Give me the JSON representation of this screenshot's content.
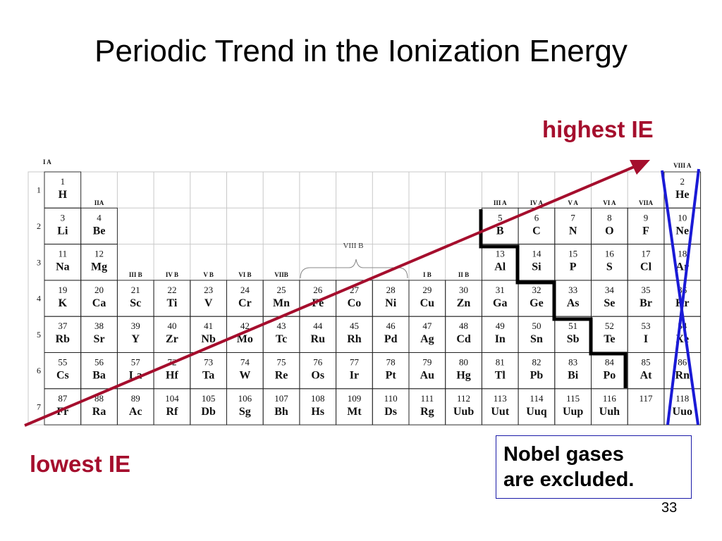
{
  "slide": {
    "title": "Periodic Trend in the Ionization Energy",
    "highest_label": "highest IE",
    "lowest_label": "lowest IE",
    "note": "Nobel gases are excluded.",
    "note_line1": "Nobel gases",
    "note_line2": "are excluded.",
    "page_number": "33"
  },
  "colors": {
    "arrow": "#a50e2d",
    "noble_cross": "#1a1ad6",
    "staircase": "#000000"
  },
  "table": {
    "group_labels": {
      "ia": "I A",
      "iia": "IIA",
      "iiib": "III B",
      "ivb": "IV B",
      "vb": "V B",
      "vib": "VI B",
      "viib": "VIIB",
      "viiib": "VIII B",
      "ib": "I B",
      "iib": "II B",
      "iiia": "III A",
      "iva": "IV A",
      "va": "V A",
      "via": "VI A",
      "viia": "VIIA",
      "viiia": "VIII A"
    },
    "periods": [
      "1",
      "2",
      "3",
      "4",
      "5",
      "6",
      "7"
    ],
    "elements": [
      {
        "n": "1",
        "s": "H",
        "r": 1,
        "c": 1
      },
      {
        "n": "2",
        "s": "He",
        "r": 1,
        "c": 18
      },
      {
        "n": "3",
        "s": "Li",
        "r": 2,
        "c": 1
      },
      {
        "n": "4",
        "s": "Be",
        "r": 2,
        "c": 2
      },
      {
        "n": "5",
        "s": "B",
        "r": 2,
        "c": 13
      },
      {
        "n": "6",
        "s": "C",
        "r": 2,
        "c": 14
      },
      {
        "n": "7",
        "s": "N",
        "r": 2,
        "c": 15
      },
      {
        "n": "8",
        "s": "O",
        "r": 2,
        "c": 16
      },
      {
        "n": "9",
        "s": "F",
        "r": 2,
        "c": 17
      },
      {
        "n": "10",
        "s": "Ne",
        "r": 2,
        "c": 18
      },
      {
        "n": "11",
        "s": "Na",
        "r": 3,
        "c": 1
      },
      {
        "n": "12",
        "s": "Mg",
        "r": 3,
        "c": 2
      },
      {
        "n": "13",
        "s": "Al",
        "r": 3,
        "c": 13
      },
      {
        "n": "14",
        "s": "Si",
        "r": 3,
        "c": 14
      },
      {
        "n": "15",
        "s": "P",
        "r": 3,
        "c": 15
      },
      {
        "n": "16",
        "s": "S",
        "r": 3,
        "c": 16
      },
      {
        "n": "17",
        "s": "Cl",
        "r": 3,
        "c": 17
      },
      {
        "n": "18",
        "s": "Ar",
        "r": 3,
        "c": 18
      },
      {
        "n": "19",
        "s": "K",
        "r": 4,
        "c": 1
      },
      {
        "n": "20",
        "s": "Ca",
        "r": 4,
        "c": 2
      },
      {
        "n": "21",
        "s": "Sc",
        "r": 4,
        "c": 3
      },
      {
        "n": "22",
        "s": "Ti",
        "r": 4,
        "c": 4
      },
      {
        "n": "23",
        "s": "V",
        "r": 4,
        "c": 5
      },
      {
        "n": "24",
        "s": "Cr",
        "r": 4,
        "c": 6
      },
      {
        "n": "25",
        "s": "Mn",
        "r": 4,
        "c": 7
      },
      {
        "n": "26",
        "s": "Fe",
        "r": 4,
        "c": 8
      },
      {
        "n": "27",
        "s": "Co",
        "r": 4,
        "c": 9
      },
      {
        "n": "28",
        "s": "Ni",
        "r": 4,
        "c": 10
      },
      {
        "n": "29",
        "s": "Cu",
        "r": 4,
        "c": 11
      },
      {
        "n": "30",
        "s": "Zn",
        "r": 4,
        "c": 12
      },
      {
        "n": "31",
        "s": "Ga",
        "r": 4,
        "c": 13
      },
      {
        "n": "32",
        "s": "Ge",
        "r": 4,
        "c": 14
      },
      {
        "n": "33",
        "s": "As",
        "r": 4,
        "c": 15
      },
      {
        "n": "34",
        "s": "Se",
        "r": 4,
        "c": 16
      },
      {
        "n": "35",
        "s": "Br",
        "r": 4,
        "c": 17
      },
      {
        "n": "36",
        "s": "Kr",
        "r": 4,
        "c": 18
      },
      {
        "n": "37",
        "s": "Rb",
        "r": 5,
        "c": 1
      },
      {
        "n": "38",
        "s": "Sr",
        "r": 5,
        "c": 2
      },
      {
        "n": "39",
        "s": "Y",
        "r": 5,
        "c": 3
      },
      {
        "n": "40",
        "s": "Zr",
        "r": 5,
        "c": 4
      },
      {
        "n": "41",
        "s": "Nb",
        "r": 5,
        "c": 5
      },
      {
        "n": "42",
        "s": "Mo",
        "r": 5,
        "c": 6
      },
      {
        "n": "43",
        "s": "Tc",
        "r": 5,
        "c": 7
      },
      {
        "n": "44",
        "s": "Ru",
        "r": 5,
        "c": 8
      },
      {
        "n": "45",
        "s": "Rh",
        "r": 5,
        "c": 9
      },
      {
        "n": "46",
        "s": "Pd",
        "r": 5,
        "c": 10
      },
      {
        "n": "47",
        "s": "Ag",
        "r": 5,
        "c": 11
      },
      {
        "n": "48",
        "s": "Cd",
        "r": 5,
        "c": 12
      },
      {
        "n": "49",
        "s": "In",
        "r": 5,
        "c": 13
      },
      {
        "n": "50",
        "s": "Sn",
        "r": 5,
        "c": 14
      },
      {
        "n": "51",
        "s": "Sb",
        "r": 5,
        "c": 15
      },
      {
        "n": "52",
        "s": "Te",
        "r": 5,
        "c": 16
      },
      {
        "n": "53",
        "s": "I",
        "r": 5,
        "c": 17
      },
      {
        "n": "54",
        "s": "Xe",
        "r": 5,
        "c": 18
      },
      {
        "n": "55",
        "s": "Cs",
        "r": 6,
        "c": 1
      },
      {
        "n": "56",
        "s": "Ba",
        "r": 6,
        "c": 2
      },
      {
        "n": "57",
        "s": "La",
        "r": 6,
        "c": 3
      },
      {
        "n": "72",
        "s": "Hf",
        "r": 6,
        "c": 4
      },
      {
        "n": "73",
        "s": "Ta",
        "r": 6,
        "c": 5
      },
      {
        "n": "74",
        "s": "W",
        "r": 6,
        "c": 6
      },
      {
        "n": "75",
        "s": "Re",
        "r": 6,
        "c": 7
      },
      {
        "n": "76",
        "s": "Os",
        "r": 6,
        "c": 8
      },
      {
        "n": "77",
        "s": "Ir",
        "r": 6,
        "c": 9
      },
      {
        "n": "78",
        "s": "Pt",
        "r": 6,
        "c": 10
      },
      {
        "n": "79",
        "s": "Au",
        "r": 6,
        "c": 11
      },
      {
        "n": "80",
        "s": "Hg",
        "r": 6,
        "c": 12
      },
      {
        "n": "81",
        "s": "Tl",
        "r": 6,
        "c": 13
      },
      {
        "n": "82",
        "s": "Pb",
        "r": 6,
        "c": 14
      },
      {
        "n": "83",
        "s": "Bi",
        "r": 6,
        "c": 15
      },
      {
        "n": "84",
        "s": "Po",
        "r": 6,
        "c": 16
      },
      {
        "n": "85",
        "s": "At",
        "r": 6,
        "c": 17
      },
      {
        "n": "86",
        "s": "Rn",
        "r": 6,
        "c": 18
      },
      {
        "n": "87",
        "s": "Fr",
        "r": 7,
        "c": 1
      },
      {
        "n": "88",
        "s": "Ra",
        "r": 7,
        "c": 2
      },
      {
        "n": "89",
        "s": "Ac",
        "r": 7,
        "c": 3
      },
      {
        "n": "104",
        "s": "Rf",
        "r": 7,
        "c": 4
      },
      {
        "n": "105",
        "s": "Db",
        "r": 7,
        "c": 5
      },
      {
        "n": "106",
        "s": "Sg",
        "r": 7,
        "c": 6
      },
      {
        "n": "107",
        "s": "Bh",
        "r": 7,
        "c": 7
      },
      {
        "n": "108",
        "s": "Hs",
        "r": 7,
        "c": 8
      },
      {
        "n": "109",
        "s": "Mt",
        "r": 7,
        "c": 9
      },
      {
        "n": "110",
        "s": "Ds",
        "r": 7,
        "c": 10
      },
      {
        "n": "111",
        "s": "Rg",
        "r": 7,
        "c": 11
      },
      {
        "n": "112",
        "s": "Uub",
        "r": 7,
        "c": 12
      },
      {
        "n": "113",
        "s": "Uut",
        "r": 7,
        "c": 13
      },
      {
        "n": "114",
        "s": "Uuq",
        "r": 7,
        "c": 14
      },
      {
        "n": "115",
        "s": "Uup",
        "r": 7,
        "c": 15
      },
      {
        "n": "116",
        "s": "Uuh",
        "r": 7,
        "c": 16
      },
      {
        "n": "117",
        "s": "",
        "r": 7,
        "c": 17
      },
      {
        "n": "118",
        "s": "Uuo",
        "r": 7,
        "c": 18
      }
    ]
  }
}
